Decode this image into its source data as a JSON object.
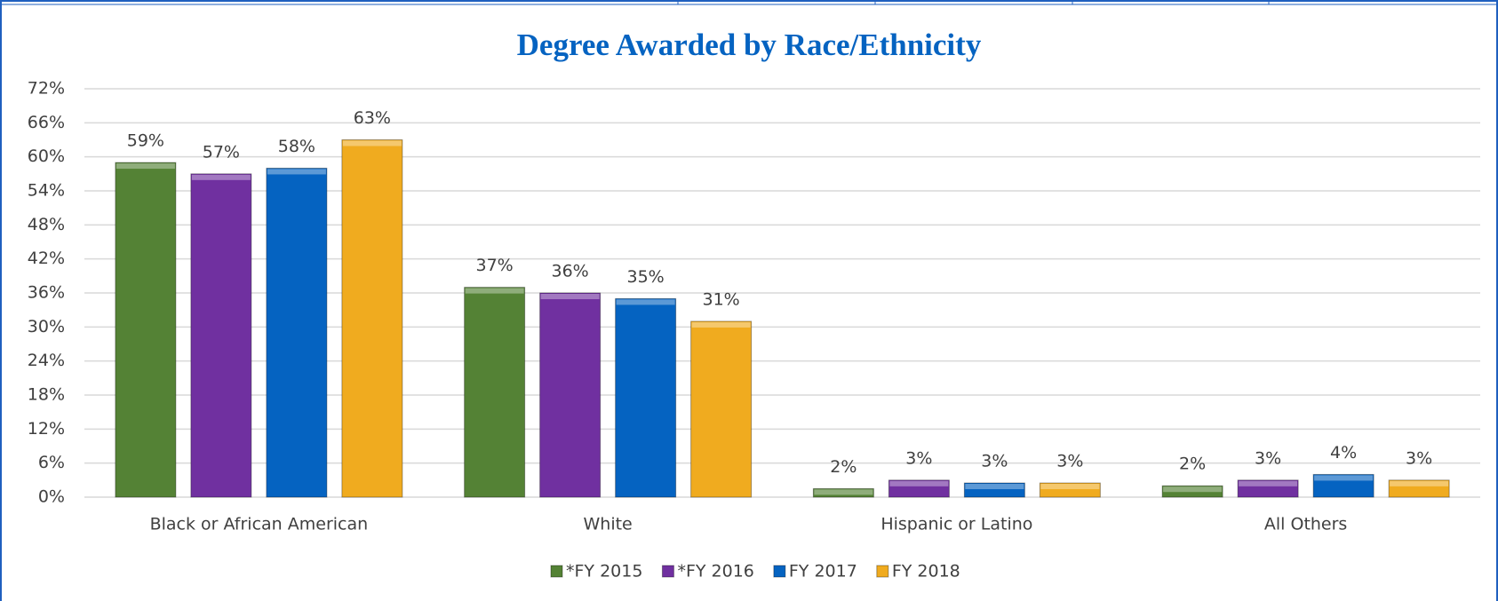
{
  "chart_data": {
    "type": "bar",
    "title": "Degree Awarded by Race/Ethnicity",
    "categories": [
      "Black or African American",
      "White",
      "Hispanic or Latino",
      "All Others"
    ],
    "series": [
      {
        "name": "*FY 2015",
        "color": "#548235",
        "values": [
          59,
          37,
          1.5,
          2
        ],
        "value_labels": [
          "59%",
          "37%",
          "2%",
          "2%"
        ]
      },
      {
        "name": "*FY 2016",
        "color": "#7030a0",
        "values": [
          57,
          36,
          3,
          3
        ],
        "value_labels": [
          "57%",
          "36%",
          "3%",
          "3%"
        ]
      },
      {
        "name": "FY 2017",
        "color": "#0563c1",
        "values": [
          58,
          35,
          2.5,
          4
        ],
        "value_labels": [
          "58%",
          "35%",
          "3%",
          "4%"
        ]
      },
      {
        "name": "FY 2018",
        "color": "#f0ab1f",
        "values": [
          63,
          31,
          2.5,
          3
        ],
        "value_labels": [
          "63%",
          "31%",
          "3%",
          "3%"
        ]
      }
    ],
    "ylim": [
      0,
      72
    ],
    "yticks": [
      {
        "value": 0,
        "label": "0%"
      },
      {
        "value": 6,
        "label": "6%"
      },
      {
        "value": 12,
        "label": "12%"
      },
      {
        "value": 18,
        "label": "18%"
      },
      {
        "value": 24,
        "label": "24%"
      },
      {
        "value": 30,
        "label": "30%"
      },
      {
        "value": 36,
        "label": "36%"
      },
      {
        "value": 42,
        "label": "42%"
      },
      {
        "value": 48,
        "label": "48%"
      },
      {
        "value": 54,
        "label": "54%"
      },
      {
        "value": 60,
        "label": "60%"
      },
      {
        "value": 66,
        "label": "66%"
      },
      {
        "value": 72,
        "label": "72%"
      }
    ],
    "grid": true,
    "legend": "bottom"
  }
}
